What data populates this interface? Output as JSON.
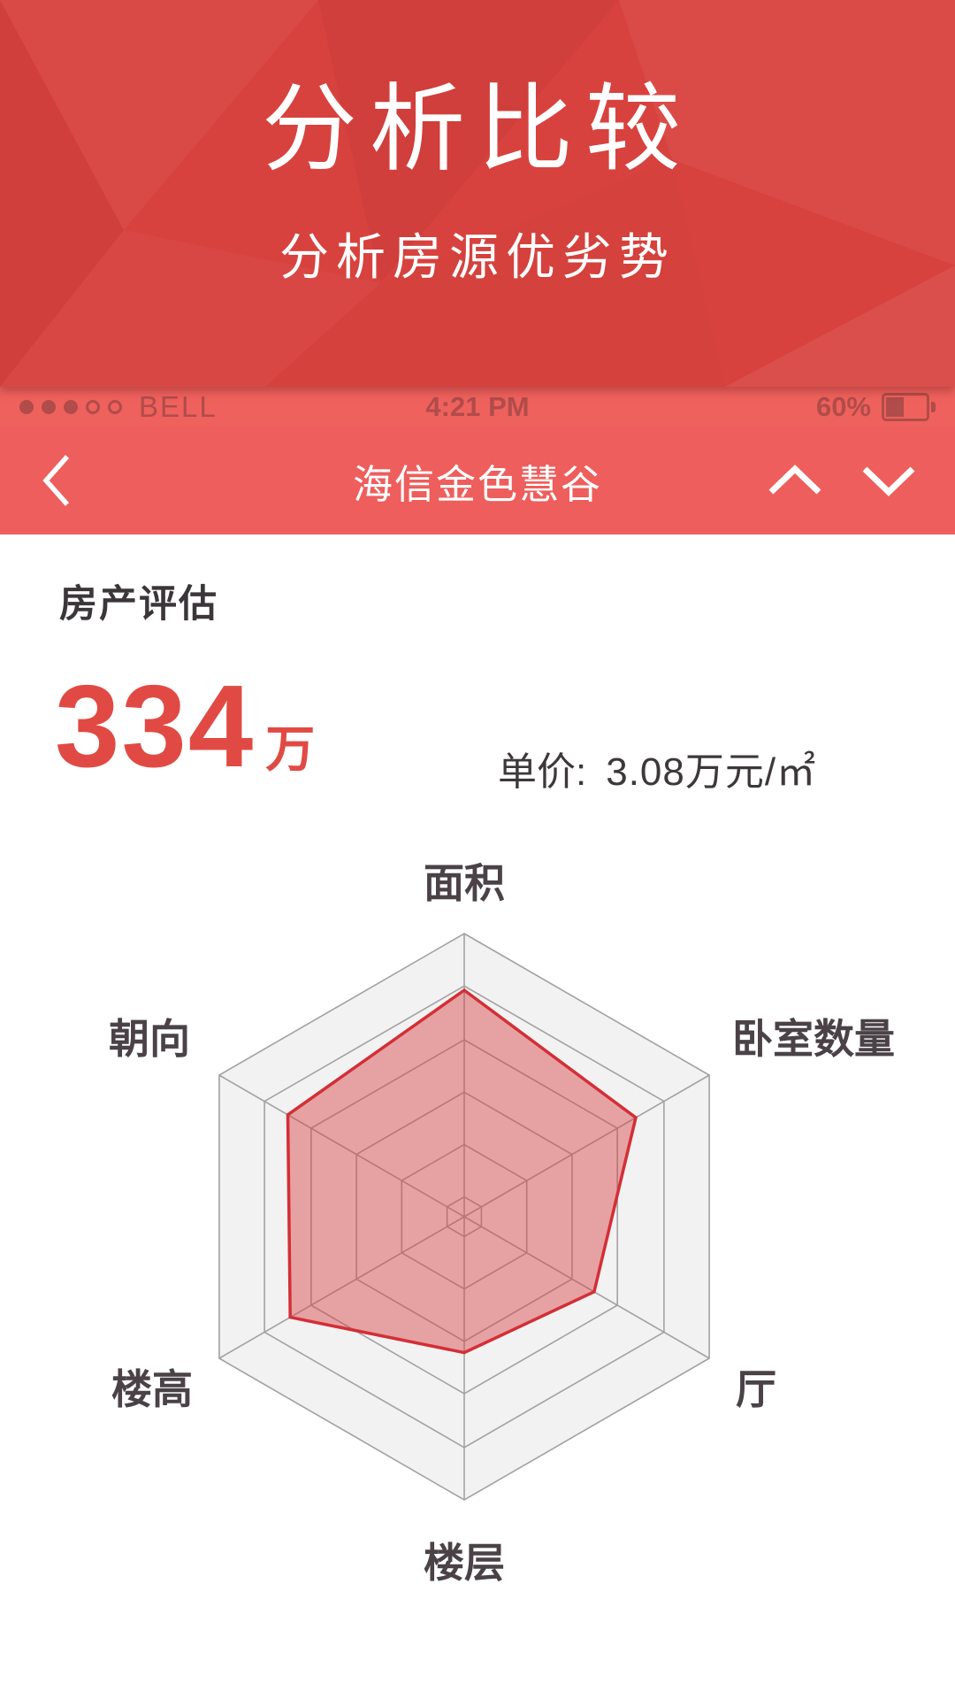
{
  "header": {
    "title": "分析比较",
    "subtitle": "分析房源优劣势"
  },
  "status_bar": {
    "carrier": "BELL",
    "time": "4:21 PM",
    "battery_percent": "60%"
  },
  "nav_bar": {
    "title": "海信金色慧谷"
  },
  "evaluation": {
    "section_title": "房产评估",
    "price_value": "334",
    "price_unit": "万",
    "unit_price_label": "单价:",
    "unit_price_value": "3.08万元/㎡"
  },
  "chart_data": {
    "type": "radar",
    "indicators": [
      {
        "name": "面积",
        "max": 100
      },
      {
        "name": "卧室数量",
        "max": 100
      },
      {
        "name": "厅",
        "max": 100
      },
      {
        "name": "楼层",
        "max": 100
      },
      {
        "name": "楼高",
        "max": 100
      },
      {
        "name": "朝向",
        "max": 100
      }
    ],
    "series": [
      {
        "name": "房产评估",
        "values": [
          80,
          70,
          53,
          48,
          71,
          72
        ]
      }
    ],
    "ring_levels_percent": [
      100,
      81.5,
      62.5,
      44,
      25.5,
      7
    ],
    "grid_line_color": "#a2a2a2",
    "grid_fill_color": "#f2f2f2",
    "series_fill_color": "rgba(216,62,67,0.45)",
    "series_stroke_color": "#d32f36",
    "label_color": "#4a4247",
    "legend_position": "none"
  },
  "colors": {
    "header_red": "#d8423e",
    "status_bar_bg": "#ef615d",
    "nav_bar_bg": "#ee5e5c",
    "price_red": "#e14a44",
    "text_dark": "#3d383b"
  }
}
